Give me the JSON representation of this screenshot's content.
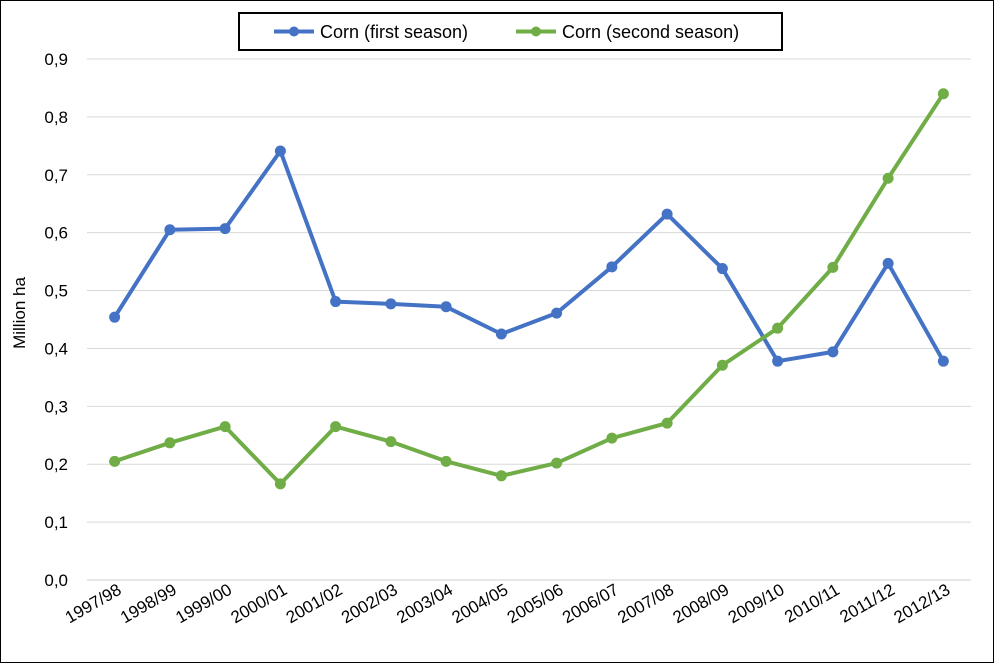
{
  "chart_data": {
    "type": "line",
    "title": "",
    "xlabel": "",
    "ylabel": "Million ha",
    "ylim": [
      0,
      0.9
    ],
    "yticks": [
      "0,0",
      "0,1",
      "0,2",
      "0,3",
      "0,4",
      "0,5",
      "0,6",
      "0,7",
      "0,8",
      "0,9"
    ],
    "grid": true,
    "legend_position": "top-center",
    "categories": [
      "1997/98",
      "1998/99",
      "1999/00",
      "2000/01",
      "2001/02",
      "2002/03",
      "2003/04",
      "2004/05",
      "2005/06",
      "2006/07",
      "2007/08",
      "2008/09",
      "2009/10",
      "2010/11",
      "2011/12",
      "2012/13"
    ],
    "series": [
      {
        "name": "Corn (first season)",
        "color": "#4472C4",
        "values": [
          0.454,
          0.605,
          0.607,
          0.741,
          0.481,
          0.477,
          0.472,
          0.425,
          0.461,
          0.541,
          0.632,
          0.538,
          0.378,
          0.394,
          0.547,
          0.378
        ]
      },
      {
        "name": "Corn (second season)",
        "color": "#70AD47",
        "values": [
          0.205,
          0.237,
          0.265,
          0.166,
          0.265,
          0.239,
          0.205,
          0.18,
          0.202,
          0.245,
          0.271,
          0.371,
          0.435,
          0.54,
          0.694,
          0.84
        ]
      }
    ]
  }
}
